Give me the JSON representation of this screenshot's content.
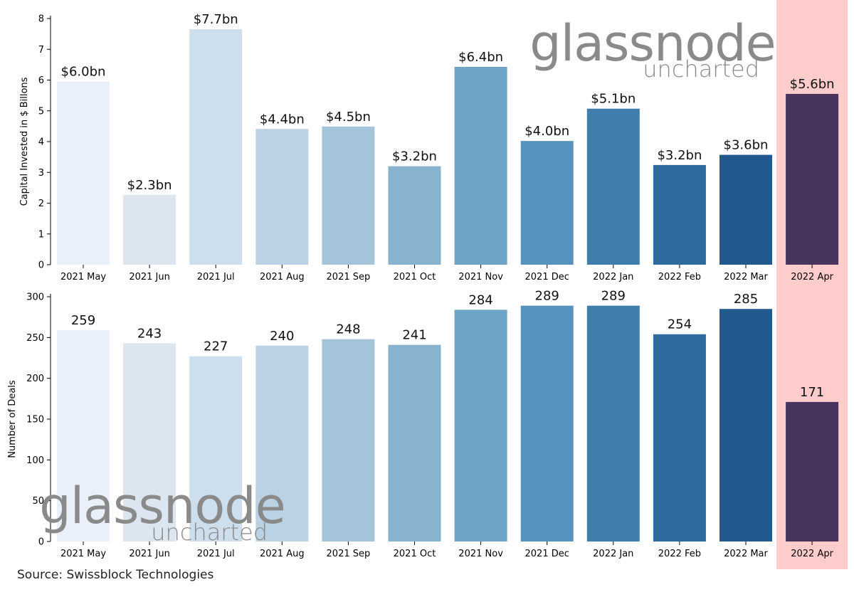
{
  "brand": {
    "logo_main": "glassnode",
    "logo_sub": "uncharted",
    "logo_color": "#8a8a8a"
  },
  "source": "Source: Swissblock Technologies",
  "highlight": {
    "category": "2022 Apr",
    "color": "#ffcccc"
  },
  "palette": [
    "#e9f0f9",
    "#dbe6f1",
    "#cddeed",
    "#bad2e3",
    "#a3c4d9",
    "#88b3cf",
    "#6fa4c5",
    "#5692bc",
    "#3f7eac",
    "#2f6a9f",
    "#225a90",
    "#46345d"
  ],
  "chart_data": [
    {
      "type": "bar",
      "categories": [
        "2021 May",
        "2021 Jun",
        "2021 Jul",
        "2021 Aug",
        "2021 Sep",
        "2021 Oct",
        "2021 Nov",
        "2021 Dec",
        "2022 Jan",
        "2022 Feb",
        "2022 Mar",
        "2022 Apr"
      ],
      "values": [
        5.95,
        2.27,
        7.65,
        4.41,
        4.49,
        3.2,
        6.43,
        4.02,
        5.07,
        3.24,
        3.57,
        5.55
      ],
      "data_labels": [
        "$6.0bn",
        "$2.3bn",
        "$7.7bn",
        "$4.4bn",
        "$4.5bn",
        "$3.2bn",
        "$6.4bn",
        "$4.0bn",
        "$5.1bn",
        "$3.2bn",
        "$3.6bn",
        "$5.6bn"
      ],
      "ylabel": "Capital Invested in $ Billons",
      "ylim": [
        0,
        8
      ],
      "yticks": [
        0,
        1,
        2,
        3,
        4,
        5,
        6,
        7,
        8
      ],
      "grid": false
    },
    {
      "type": "bar",
      "categories": [
        "2021 May",
        "2021 Jun",
        "2021 Jul",
        "2021 Aug",
        "2021 Sep",
        "2021 Oct",
        "2021 Nov",
        "2021 Dec",
        "2022 Jan",
        "2022 Feb",
        "2022 Mar",
        "2022 Apr"
      ],
      "values": [
        259,
        243,
        227,
        240,
        248,
        241,
        284,
        289,
        289,
        254,
        285,
        171
      ],
      "data_labels": [
        "259",
        "243",
        "227",
        "240",
        "248",
        "241",
        "284",
        "289",
        "289",
        "254",
        "285",
        "171"
      ],
      "ylabel": "Number of Deals",
      "ylim": [
        0,
        300
      ],
      "yticks": [
        0,
        50,
        100,
        150,
        200,
        250,
        300
      ],
      "grid": false
    }
  ]
}
